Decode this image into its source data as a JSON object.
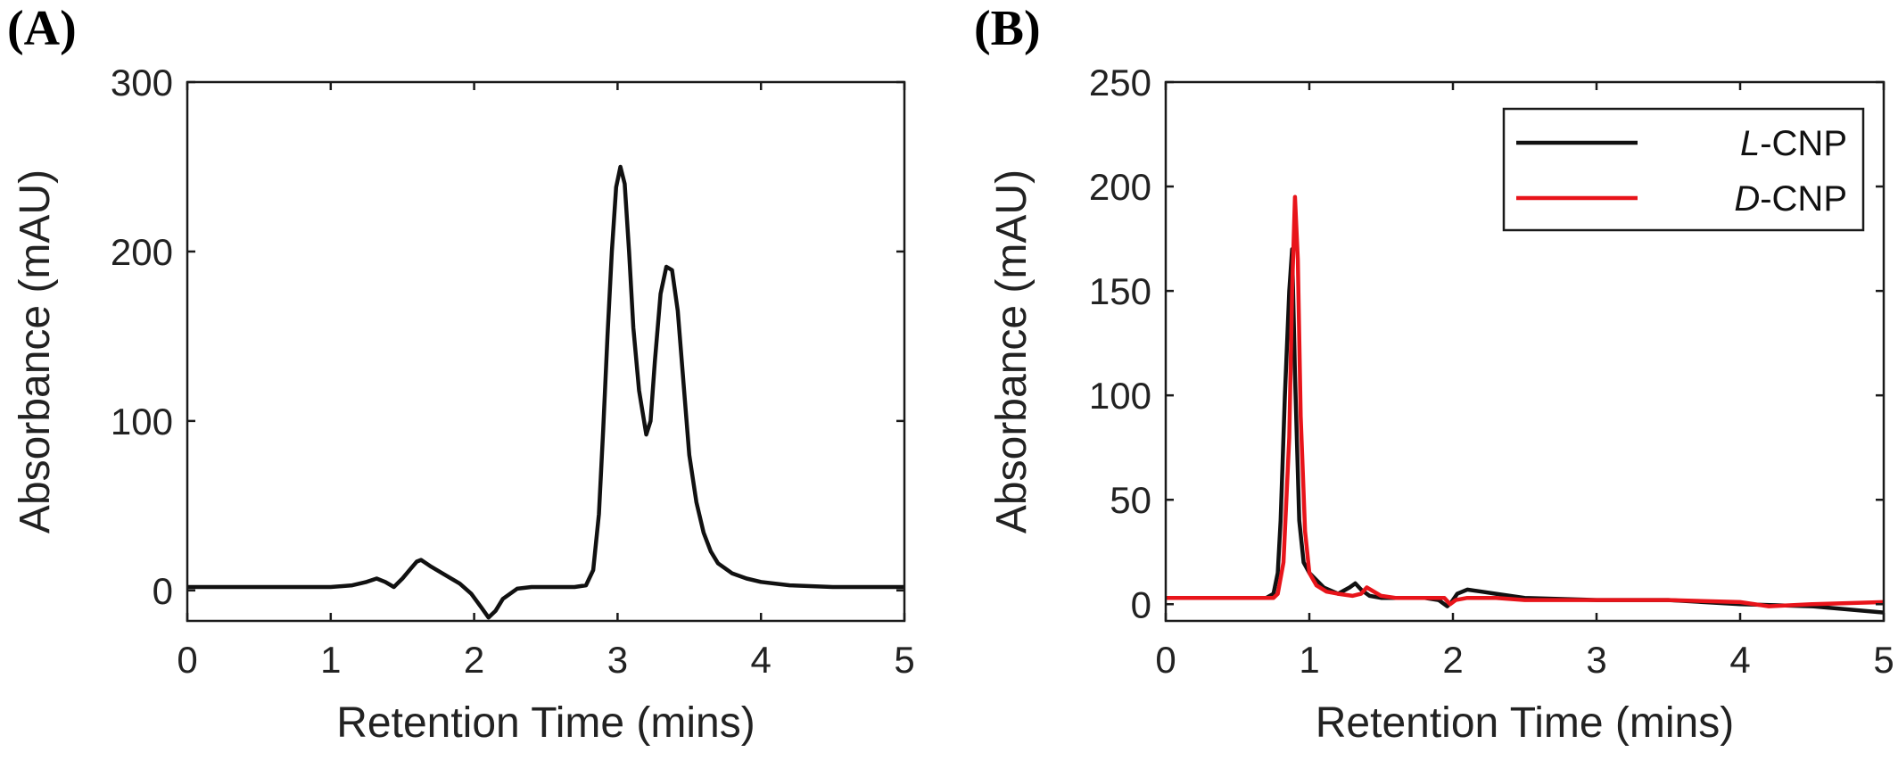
{
  "chart_data": [
    {
      "type": "line",
      "panel_label": "(A)",
      "xlabel": "Retention Time (mins)",
      "ylabel": "Absorbance (mAU)",
      "xlim": [
        0,
        5
      ],
      "ylim": [
        -18,
        300
      ],
      "xticks": [
        0,
        1,
        2,
        3,
        4,
        5
      ],
      "yticks": [
        0,
        100,
        200,
        300
      ],
      "grid": false,
      "legend": null,
      "series": [
        {
          "color": "#111111",
          "x": [
            0,
            0.5,
            1.0,
            1.15,
            1.25,
            1.32,
            1.38,
            1.44,
            1.5,
            1.56,
            1.6,
            1.63,
            1.7,
            1.8,
            1.9,
            1.98,
            2.05,
            2.1,
            2.15,
            2.2,
            2.3,
            2.4,
            2.5,
            2.6,
            2.7,
            2.78,
            2.83,
            2.87,
            2.9,
            2.93,
            2.96,
            2.99,
            3.02,
            3.05,
            3.08,
            3.11,
            3.15,
            3.2,
            3.23,
            3.26,
            3.3,
            3.34,
            3.38,
            3.42,
            3.46,
            3.5,
            3.55,
            3.6,
            3.65,
            3.7,
            3.8,
            3.9,
            4.0,
            4.2,
            4.5,
            5.0
          ],
          "y": [
            2,
            2,
            2,
            3,
            5,
            7,
            5,
            2,
            7,
            13,
            17,
            18,
            14,
            9,
            4,
            -2,
            -10,
            -16,
            -12,
            -5,
            1,
            2,
            2,
            2,
            2,
            3,
            12,
            45,
            95,
            150,
            200,
            238,
            250,
            240,
            200,
            155,
            118,
            92,
            100,
            135,
            175,
            191,
            189,
            165,
            122,
            80,
            52,
            34,
            23,
            16,
            10,
            7,
            5,
            3,
            2,
            2
          ]
        }
      ]
    },
    {
      "type": "line",
      "panel_label": "(B)",
      "xlabel": "Retention Time (mins)",
      "ylabel": "Absorbance (mAU)",
      "xlim": [
        0,
        5
      ],
      "ylim": [
        -8,
        250
      ],
      "xticks": [
        0,
        1,
        2,
        3,
        4,
        5
      ],
      "yticks": [
        0,
        50,
        100,
        150,
        200,
        250
      ],
      "grid": false,
      "legend": "top-right",
      "series": [
        {
          "name_italic": "L",
          "name_rest": "-CNP",
          "color": "#111111",
          "x": [
            0,
            0.5,
            0.7,
            0.75,
            0.78,
            0.8,
            0.83,
            0.86,
            0.88,
            0.9,
            0.93,
            0.96,
            1.0,
            1.1,
            1.2,
            1.28,
            1.32,
            1.36,
            1.42,
            1.5,
            1.6,
            1.7,
            1.8,
            1.9,
            1.96,
            1.99,
            2.03,
            2.1,
            2.2,
            2.3,
            2.5,
            3.0,
            3.5,
            4.0,
            4.5,
            5.0
          ],
          "y": [
            3,
            3,
            3,
            5,
            15,
            40,
            100,
            150,
            170,
            110,
            40,
            20,
            15,
            8,
            5,
            8,
            10,
            7,
            4,
            3,
            3,
            3,
            3,
            2,
            -1,
            1,
            5,
            7,
            6,
            5,
            3,
            2,
            2,
            0,
            -1,
            -4
          ]
        },
        {
          "name_italic": "D",
          "name_rest": "-CNP",
          "color": "#e8141a",
          "x": [
            0,
            0.5,
            0.75,
            0.78,
            0.82,
            0.86,
            0.88,
            0.9,
            0.92,
            0.94,
            0.97,
            1.0,
            1.05,
            1.12,
            1.2,
            1.3,
            1.36,
            1.4,
            1.5,
            1.6,
            1.8,
            1.94,
            1.98,
            2.02,
            2.1,
            2.3,
            2.5,
            3.0,
            3.5,
            4.0,
            4.2,
            4.5,
            5.0
          ],
          "y": [
            3,
            3,
            3,
            5,
            20,
            80,
            150,
            195,
            165,
            90,
            35,
            15,
            9,
            6,
            5,
            4,
            5,
            8,
            4,
            3,
            3,
            3,
            0,
            2,
            3,
            3,
            2,
            2,
            2,
            1,
            -1,
            0,
            1
          ]
        }
      ]
    }
  ]
}
